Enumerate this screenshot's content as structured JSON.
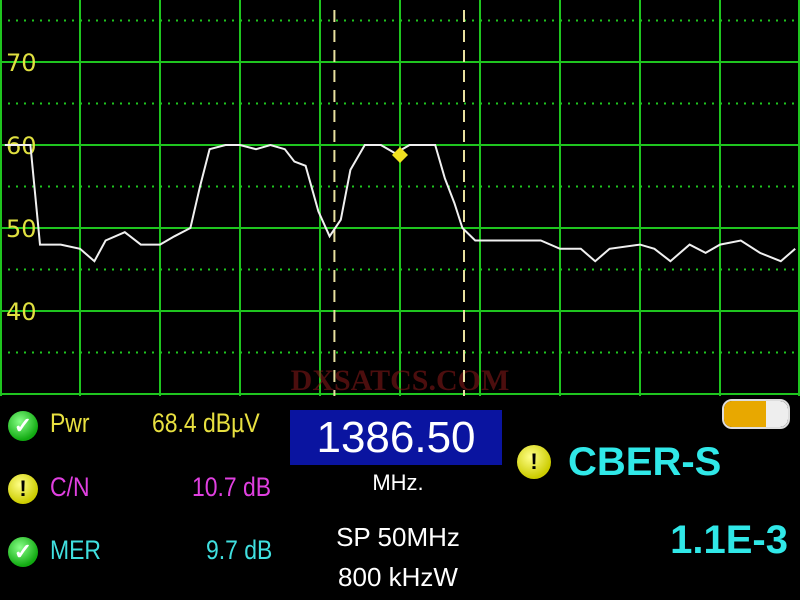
{
  "watermark": "DXSATCS.COM",
  "colors": {
    "grid": "#1fc51f",
    "trace": "#f0f0f0",
    "axis_labels": "#e0e040",
    "marker": "#f0e020",
    "cursor": "#e8e0a0",
    "pwr": "#e8e040",
    "cn": "#e040e0",
    "mer": "#40e0e0",
    "cber": "#30e8e8",
    "freq_box": "#0a14a0"
  },
  "chart_data": {
    "type": "line",
    "title": "",
    "xlabel": "",
    "ylabel": "",
    "ylim": [
      30,
      80
    ],
    "xlim_mhz": [
      1361.5,
      1411.5
    ],
    "yticks": [
      "80",
      "70",
      "60",
      "50",
      "40"
    ],
    "grid": true,
    "x_divisions": 10,
    "cursors_mhz": [
      1382.4,
      1390.5
    ],
    "marker": {
      "x": 1386.5,
      "y": 58.8
    },
    "series": [
      {
        "x": [
          1361.8,
          1363.4,
          1364.0,
          1365.3,
          1366.5,
          1367.4,
          1368.1,
          1369.3,
          1370.3,
          1371.5,
          1372.4,
          1373.4,
          1374.0,
          1374.6,
          1375.6,
          1376.5,
          1377.5,
          1378.4,
          1379.3,
          1379.9,
          1380.6,
          1381.4,
          1382.1,
          1382.8,
          1383.4,
          1384.3,
          1385.3,
          1386.2,
          1387.1,
          1388.7,
          1389.3,
          1389.9,
          1390.4,
          1391.2,
          1392.8,
          1394.0,
          1395.3,
          1396.5,
          1397.8,
          1398.7,
          1399.6,
          1401.5,
          1402.4,
          1403.4,
          1404.6,
          1405.6,
          1406.5,
          1407.8,
          1409.0,
          1410.3,
          1411.2
        ],
        "y": [
          60,
          60,
          48,
          48,
          47.5,
          46,
          48.5,
          49.5,
          48,
          48,
          49,
          50,
          55,
          59.5,
          60,
          60,
          59.5,
          60,
          59.5,
          58,
          57.5,
          52,
          49,
          51,
          57,
          60,
          60,
          59,
          60,
          60,
          56,
          53,
          50,
          48.5,
          48.5,
          48.5,
          48.5,
          47.5,
          47.5,
          46,
          47.5,
          48,
          47.5,
          46,
          48,
          47,
          48,
          48.5,
          47,
          46,
          47.5
        ]
      }
    ]
  },
  "readouts": [
    {
      "status": "ok",
      "label": "Pwr",
      "value": "68.4 dBµV"
    },
    {
      "status": "warning",
      "label": "C/N",
      "value": "10.7 dB"
    },
    {
      "status": "ok",
      "label": "MER",
      "value": "9.7 dB"
    }
  ],
  "frequency": {
    "value": "1386.50",
    "unit": "MHz."
  },
  "span": {
    "line1": "SP 50MHz",
    "line2": "800 kHzW"
  },
  "cber": {
    "status": "warning",
    "label": "CBER-S",
    "value": "1.1E-3"
  },
  "battery": {
    "level": 0.7
  }
}
